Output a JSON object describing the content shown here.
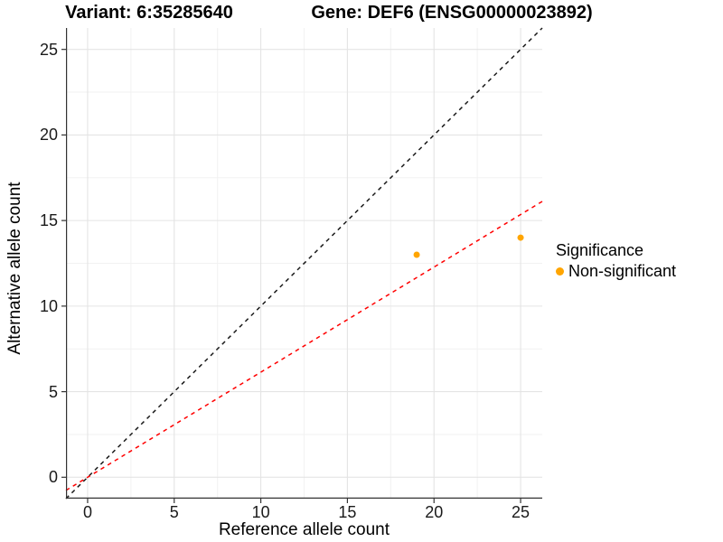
{
  "titles": {
    "left": "Variant: 6:35285640",
    "right": "Gene: DEF6 (ENSG00000023892)"
  },
  "chart_data": {
    "type": "scatter",
    "title_left": "Variant: 6:35285640",
    "title_right": "Gene: DEF6 (ENSG00000023892)",
    "xlabel": "Reference allele count",
    "ylabel": "Alternative allele count",
    "xlim": [
      -1.25,
      26.25
    ],
    "ylim": [
      -1.25,
      26.25
    ],
    "xticks": [
      0,
      5,
      10,
      15,
      20,
      25
    ],
    "yticks": [
      0,
      5,
      10,
      15,
      20,
      25
    ],
    "grid": {
      "major_color": "#e4e4e4",
      "minor_color": "#f2f2f2",
      "minor_on": true
    },
    "axis_line_color": "#333333",
    "series": [
      {
        "name": "Non-significant",
        "color": "#FFA500",
        "points": [
          {
            "x": 19,
            "y": 13
          },
          {
            "x": 25,
            "y": 14
          }
        ]
      }
    ],
    "lines": [
      {
        "name": "identity-line",
        "slope": 1.0,
        "intercept": 0,
        "color": "#1a1a1a",
        "dash": "dashed"
      },
      {
        "name": "fit-line",
        "slope": 0.614,
        "intercept": 0,
        "color": "#ff0000",
        "dash": "dashed"
      }
    ],
    "legend_position": "right"
  },
  "legend": {
    "title": "Significance",
    "items": [
      {
        "label": "Non-significant",
        "color": "#FFA500"
      }
    ]
  }
}
